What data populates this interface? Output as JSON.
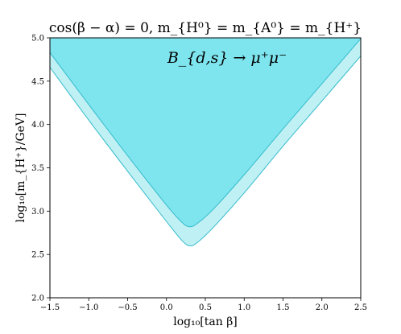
{
  "chart_data": {
    "type": "area",
    "title": "cos(β − α) = 0, m_{H⁰} = m_{A⁰} = m_{H⁺}",
    "annotation": "B_{d,s} → μ⁺μ⁻",
    "xlabel": "log₁₀[tan β]",
    "ylabel": "log₁₀[m_{H⁺}/GeV]",
    "xlim": [
      -1.5,
      2.5
    ],
    "ylim": [
      2.0,
      5.0
    ],
    "x_ticks": [
      "−1.5",
      "−1.0",
      "−0.5",
      "0.0",
      "0.5",
      "1.0",
      "1.5",
      "2.0",
      "2.5"
    ],
    "y_ticks": [
      "2.0",
      "2.5",
      "3.0",
      "3.5",
      "4.0",
      "4.5",
      "5.0"
    ],
    "grid": false,
    "series": [
      {
        "role": "outer-band",
        "color": "#bff0f4",
        "boundary": {
          "x": [
            -1.5,
            -1.0,
            -0.5,
            0.0,
            0.2,
            0.3,
            0.4,
            0.6,
            1.0,
            1.5,
            2.0,
            2.5
          ],
          "y": [
            4.66,
            4.05,
            3.46,
            2.88,
            2.66,
            2.6,
            2.64,
            2.81,
            3.21,
            3.75,
            4.27,
            4.79
          ]
        }
      },
      {
        "role": "inner-band",
        "color": "#7ee5ef",
        "boundary": {
          "x": [
            -1.5,
            -1.0,
            -0.5,
            0.0,
            0.2,
            0.3,
            0.4,
            0.6,
            1.0,
            1.5,
            2.0,
            2.5
          ],
          "y": [
            4.83,
            4.23,
            3.64,
            3.07,
            2.87,
            2.82,
            2.86,
            3.02,
            3.42,
            3.95,
            4.47,
            4.99
          ]
        }
      }
    ],
    "colors": {
      "line": "#35bccb",
      "axis": "#000000"
    }
  }
}
